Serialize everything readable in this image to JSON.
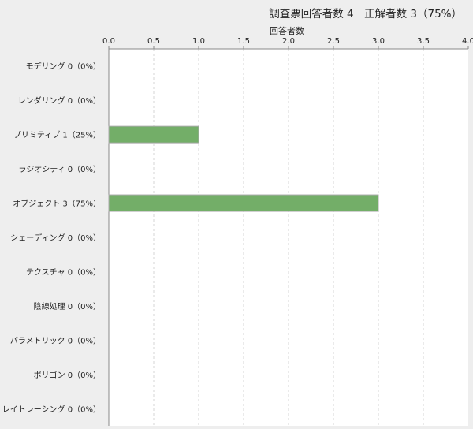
{
  "chart_data": {
    "type": "bar",
    "orientation": "horizontal",
    "title": "調査票回答者数 4　正解者数 3（75%）",
    "xlabel": "回答者数",
    "xlim": [
      0,
      4.0
    ],
    "xticks": [
      "0.0",
      "0.5",
      "1.0",
      "1.5",
      "2.0",
      "2.5",
      "3.0",
      "3.5",
      "4.0"
    ],
    "grid": true,
    "categories": [
      "モデリング",
      "レンダリング",
      "プリミティブ",
      "ラジオシティ",
      "オブジェクト",
      "シェーディング",
      "テクスチャ",
      "陰線処理",
      "パラメトリック",
      "ポリゴン",
      "レイトレーシング"
    ],
    "values": [
      0,
      0,
      1,
      0,
      3,
      0,
      0,
      0,
      0,
      0,
      0
    ],
    "labels": [
      "モデリング 0（0%）",
      "レンダリング 0（0%）",
      "プリミティブ 1（25%）",
      "ラジオシティ 0（0%）",
      "オブジェクト 3（75%）",
      "シェーディング 0（0%）",
      "テクスチャ 0（0%）",
      "陰線処理 0（0%）",
      "パラメトリック 0（0%）",
      "ポリゴン 0（0%）",
      "レイトレーシング 0（0%）"
    ],
    "bar_color": "#73ae68"
  }
}
